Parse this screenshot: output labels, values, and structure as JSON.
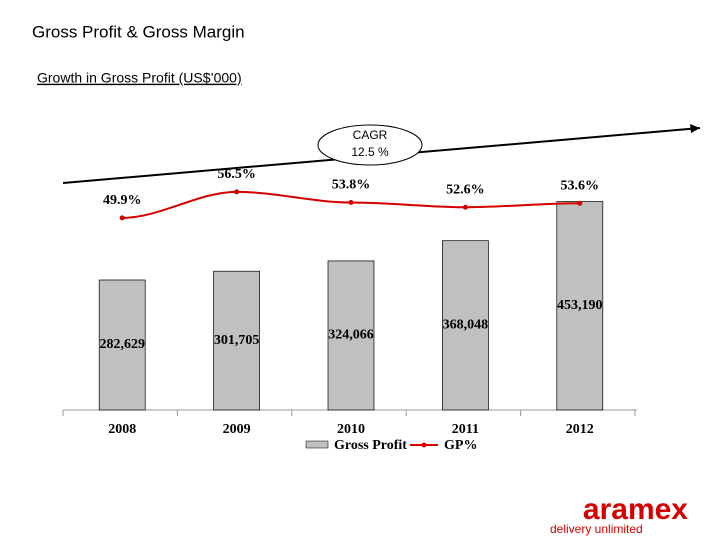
{
  "chart_data": {
    "type": "bar_line",
    "title": "Gross Profit & Gross Margin",
    "subtitle": "Growth in Gross Profit (US$’000)",
    "annotations": [
      "CAGR",
      "12.5 %"
    ],
    "categories": [
      "2008",
      "2009",
      "2010",
      "2011",
      "2012"
    ],
    "ylim": [
      0,
      500000
    ],
    "y2lim": [
      40,
      60
    ],
    "series": [
      {
        "name": "Gross Profit",
        "type": "bar",
        "color": "#c0c0c0",
        "values": [
          282629,
          301705,
          324066,
          368048,
          453190
        ],
        "value_labels": [
          "282,629",
          "301,705",
          "324,066",
          "368,048",
          "453,190"
        ]
      },
      {
        "name": "GP%",
        "type": "line",
        "axis": "y2",
        "color": "#d40000",
        "values": [
          49.9,
          56.5,
          53.8,
          52.6,
          53.6
        ],
        "value_labels": [
          "49.9%",
          "56.5%",
          "53.8%",
          "52.6%",
          "53.6%"
        ]
      }
    ]
  },
  "logo": {
    "name": "aramex",
    "tagline": "delivery unlimited"
  }
}
